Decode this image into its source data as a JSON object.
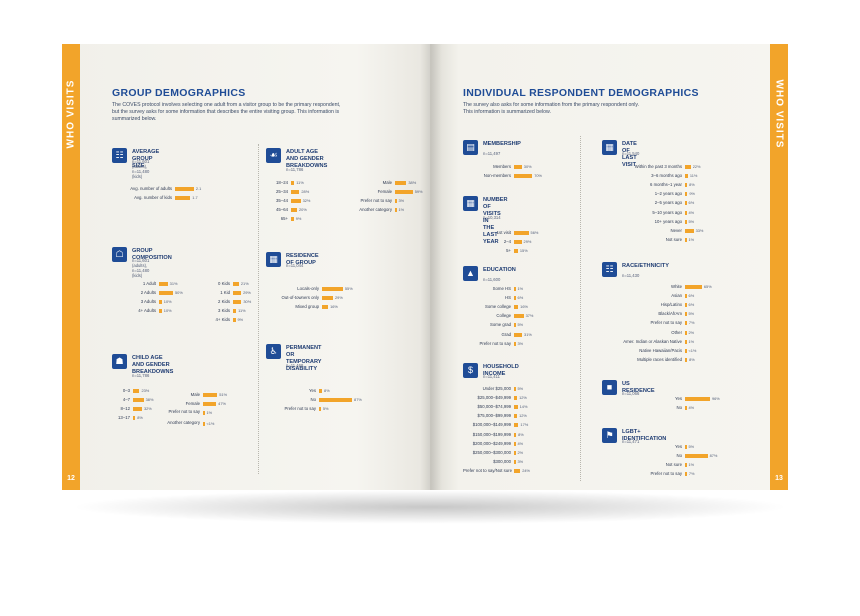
{
  "left_page": {
    "tab_label": "WHO VISITS",
    "page_number": "12",
    "title": "GROUP DEMOGRAPHICS",
    "intro": [
      "The COVES protocol involves selecting one adult from a visitor group to be the primary respondent,",
      "but the survey asks for some information that describes the entire visiting group. This information is",
      "summarized below."
    ]
  },
  "right_page": {
    "tab_label": "WHO VISITS",
    "page_number": "13",
    "title": "INDIVIDUAL RESPONDENT DEMOGRAPHICS",
    "intro": [
      "The survey also asks for some information from the primary respondent only.",
      "This information is summarized below."
    ]
  },
  "sections": [
    {
      "id": "avg-group-size",
      "icon": "people-icon",
      "title": [
        "AVERAGE GROUP SIZE"
      ],
      "subtitle": "n=11,601 (adults), n=11,480 (kids)",
      "blocks": [
        {
          "rows": [
            {
              "label": "Avg. number of adults",
              "value": 2.1,
              "text": "2.1"
            },
            {
              "label": "Avg. number of kids",
              "value": 1.7,
              "text": "1.7"
            }
          ]
        }
      ]
    },
    {
      "id": "group-composition",
      "icon": "family-icon",
      "title": [
        "GROUP COMPOSITION"
      ],
      "subtitle": "n=11,601 (adults), n=11,480 (kids)",
      "blocks": [
        {
          "rows": [
            {
              "label": "1 Adult",
              "value": 31,
              "text": "31%"
            },
            {
              "label": "2 Adults",
              "value": 50,
              "text": "50%"
            },
            {
              "label": "3 Adults",
              "value": 10,
              "text": "10%"
            },
            {
              "label": "4+ Adults",
              "value": 10,
              "text": "10%"
            }
          ]
        },
        {
          "rows": [
            {
              "label": "0 Kids",
              "value": 21,
              "text": "21%"
            },
            {
              "label": "1 Kid",
              "value": 29,
              "text": "29%"
            },
            {
              "label": "2 Kids",
              "value": 30,
              "text": "30%"
            },
            {
              "label": "3 Kids",
              "value": 11,
              "text": "11%"
            },
            {
              "label": "4+ Kids",
              "value": 9,
              "text": "9%"
            }
          ]
        }
      ]
    },
    {
      "id": "child-age-gender",
      "icon": "children-icon",
      "title": [
        "CHILD AGE AND GENDER",
        "BREAKDOWNS"
      ],
      "subtitle": "n=11,786",
      "blocks": [
        {
          "rows": [
            {
              "label": "0–3",
              "value": 23,
              "text": "23%"
            },
            {
              "label": "4–7",
              "value": 38,
              "text": "38%"
            },
            {
              "label": "8–12",
              "value": 32,
              "text": "32%"
            },
            {
              "label": "13–17",
              "value": 8,
              "text": "8%"
            }
          ]
        },
        {
          "rows": [
            {
              "label": "Male",
              "value": 51,
              "text": "51%"
            },
            {
              "label": "Female",
              "value": 47,
              "text": "47%"
            },
            {
              "label": "Prefer not to say",
              "value": 1,
              "text": "1%",
              "tall": true
            },
            {
              "label": "Another category",
              "value": 0.5,
              "text": "<1%",
              "tall": true
            }
          ]
        }
      ]
    },
    {
      "id": "adult-age-gender",
      "icon": "adults-icon",
      "title": [
        "ADULT AGE AND GENDER",
        "BREAKDOWNS"
      ],
      "subtitle": "n=11,786",
      "blocks": [
        {
          "rows": [
            {
              "label": "18–24",
              "value": 11,
              "text": "11%"
            },
            {
              "label": "25–34",
              "value": 28,
              "text": "28%"
            },
            {
              "label": "35–44",
              "value": 32,
              "text": "32%"
            },
            {
              "label": "45–64",
              "value": 20,
              "text": "20%"
            },
            {
              "label": "65+",
              "value": 9,
              "text": "9%"
            }
          ]
        },
        {
          "rows": [
            {
              "label": "Male",
              "value": 38,
              "text": "38%"
            },
            {
              "label": "Female",
              "value": 59,
              "text": "59%"
            },
            {
              "label": "Prefer not to say",
              "value": 3,
              "text": "3%"
            },
            {
              "label": "Another category",
              "value": 1,
              "text": "1%"
            }
          ]
        }
      ]
    },
    {
      "id": "residence-of-group",
      "icon": "map-icon",
      "title": [
        "RESIDENCE OF GROUP"
      ],
      "subtitle": "n=11,044",
      "blocks": [
        {
          "rows": [
            {
              "label": "Locals-only",
              "value": 55,
              "text": "55%"
            },
            {
              "label": "Out-of-towners only",
              "value": 29,
              "text": "29%"
            },
            {
              "label": "Mixed group",
              "value": 16,
              "text": "16%"
            }
          ]
        }
      ]
    },
    {
      "id": "disability",
      "icon": "wheelchair-icon",
      "title": [
        "PERMANENT OR TEMPORARY",
        "DISABILITY"
      ],
      "subtitle": "n=11,468",
      "blocks": [
        {
          "rows": [
            {
              "label": "Yes",
              "value": 8,
              "text": "8%"
            },
            {
              "label": "No",
              "value": 87,
              "text": "87%"
            },
            {
              "label": "Prefer not to say",
              "value": 5,
              "text": "5%"
            }
          ]
        }
      ]
    },
    {
      "id": "membership",
      "icon": "id-card-icon",
      "title": [
        "MEMBERSHIP"
      ],
      "subtitle": "n=11,497",
      "blocks": [
        {
          "rows": [
            {
              "label": "Members",
              "value": 30,
              "text": "30%"
            },
            {
              "label": "Non-members",
              "value": 70,
              "text": "70%"
            }
          ]
        }
      ]
    },
    {
      "id": "visits-last-year",
      "icon": "calendar-icon",
      "title": [
        "NUMBER OF VISITS IN",
        "THE LAST YEAR"
      ],
      "subtitle": "n=10,314",
      "blocks": [
        {
          "rows": [
            {
              "label": "1st visit",
              "value": 56,
              "text": "56%"
            },
            {
              "label": "2–4",
              "value": 29,
              "text": "29%"
            },
            {
              "label": "5+",
              "value": 15,
              "text": "15%"
            }
          ]
        }
      ]
    },
    {
      "id": "education",
      "icon": "graduation-cap-icon",
      "title": [
        "EDUCATION"
      ],
      "subtitle": "n=11,600",
      "blocks": [
        {
          "rows": [
            {
              "label": "Some HS",
              "value": 1,
              "text": "1%"
            },
            {
              "label": "HS",
              "value": 6,
              "text": "6%"
            },
            {
              "label": "Some college",
              "value": 16,
              "text": "16%"
            },
            {
              "label": "College",
              "value": 37,
              "text": "37%"
            },
            {
              "label": "Some grad",
              "value": 5,
              "text": "5%"
            },
            {
              "label": "Grad",
              "value": 31,
              "text": "31%"
            },
            {
              "label": "Prefer not to say",
              "value": 3,
              "text": "3%"
            }
          ]
        }
      ]
    },
    {
      "id": "household-income",
      "icon": "dollar-icon",
      "title": [
        "HOUSEHOLD INCOME"
      ],
      "subtitle": "n=11,411",
      "blocks": [
        {
          "rows": [
            {
              "label": "Under $25,000",
              "value": 5,
              "text": "5%"
            },
            {
              "label": "$25,000–$49,999",
              "value": 12,
              "text": "12%"
            },
            {
              "label": "$50,000–$74,999",
              "value": 14,
              "text": "14%"
            },
            {
              "label": "$75,000–$99,999",
              "value": 12,
              "text": "12%"
            },
            {
              "label": "$100,000–$149,999",
              "value": 17,
              "text": "17%"
            },
            {
              "label": "$150,000–$199,999",
              "value": 8,
              "text": "8%"
            },
            {
              "label": "$200,000–$249,999",
              "value": 4,
              "text": "4%"
            },
            {
              "label": "$250,000–$300,000",
              "value": 2,
              "text": "2%"
            },
            {
              "label": "$300,000",
              "value": 3,
              "text": "3%"
            },
            {
              "label": "Prefer not to say/Not sure",
              "value": 24,
              "text": "24%"
            }
          ]
        }
      ]
    },
    {
      "id": "date-last-visit",
      "icon": "calendar-icon",
      "title": [
        "DATE OF LAST VISIT"
      ],
      "subtitle": "n=11,540",
      "blocks": [
        {
          "rows": [
            {
              "label": "Within the past 3 months",
              "value": 22,
              "text": "22%"
            },
            {
              "label": "3–6 months ago",
              "value": 11,
              "text": "11%"
            },
            {
              "label": "6 months–1 year",
              "value": 8,
              "text": "8%"
            },
            {
              "label": "1–2 years ago",
              "value": 9,
              "text": "9%"
            },
            {
              "label": "2–5 years ago",
              "value": 6,
              "text": "6%"
            },
            {
              "label": "5–10 years ago",
              "value": 4,
              "text": "4%"
            },
            {
              "label": "10+ years ago",
              "value": 5,
              "text": "5%"
            },
            {
              "label": "Never",
              "value": 33,
              "text": "33%"
            },
            {
              "label": "Not sure",
              "value": 1,
              "text": "1%"
            }
          ]
        }
      ]
    },
    {
      "id": "race-ethnicity",
      "icon": "people-icon",
      "title": [
        "RACE/ETHNICITY"
      ],
      "subtitle": "n=11,430",
      "blocks": [
        {
          "rows": [
            {
              "label": "White",
              "value": 65,
              "text": "65%"
            },
            {
              "label": "Asian",
              "value": 6,
              "text": "6%"
            },
            {
              "label": "Hisp/Latinx",
              "value": 6,
              "text": "6%"
            },
            {
              "label": "Black/AfrAm",
              "value": 5,
              "text": "5%"
            },
            {
              "label": "Prefer not to say",
              "value": 7,
              "text": "7%"
            },
            {
              "label": "Other",
              "value": 2,
              "text": "2%"
            },
            {
              "label": "Amer. Indian or Alaskan Native",
              "value": 1,
              "text": "1%"
            },
            {
              "label": "Native Hawaiian/Pacis",
              "value": 0.5,
              "text": "<1%"
            },
            {
              "label": "Multiple races identified",
              "value": 8,
              "text": "8%"
            }
          ]
        }
      ]
    },
    {
      "id": "us-residence",
      "icon": "usa-map-icon",
      "title": [
        "US RESIDENCE"
      ],
      "subtitle": "n=11,066",
      "blocks": [
        {
          "rows": [
            {
              "label": "Yes",
              "value": 96,
              "text": "96%"
            },
            {
              "label": "No",
              "value": 4,
              "text": "4%"
            }
          ]
        }
      ]
    },
    {
      "id": "lgbt",
      "icon": "rainbow-flag-icon",
      "title": [
        "LGBT+ IDENTIFICATION"
      ],
      "subtitle": "n=11,471",
      "blocks": [
        {
          "rows": [
            {
              "label": "Yes",
              "value": 5,
              "text": "5%"
            },
            {
              "label": "No",
              "value": 87,
              "text": "87%"
            },
            {
              "label": "Not sure",
              "value": 1,
              "text": "1%"
            },
            {
              "label": "Prefer not to say",
              "value": 7,
              "text": "7%"
            }
          ]
        }
      ]
    }
  ],
  "colors": {
    "accent": "#f2a42a",
    "heading": "#1f4c96",
    "icon_bg": "#1f4c96"
  }
}
